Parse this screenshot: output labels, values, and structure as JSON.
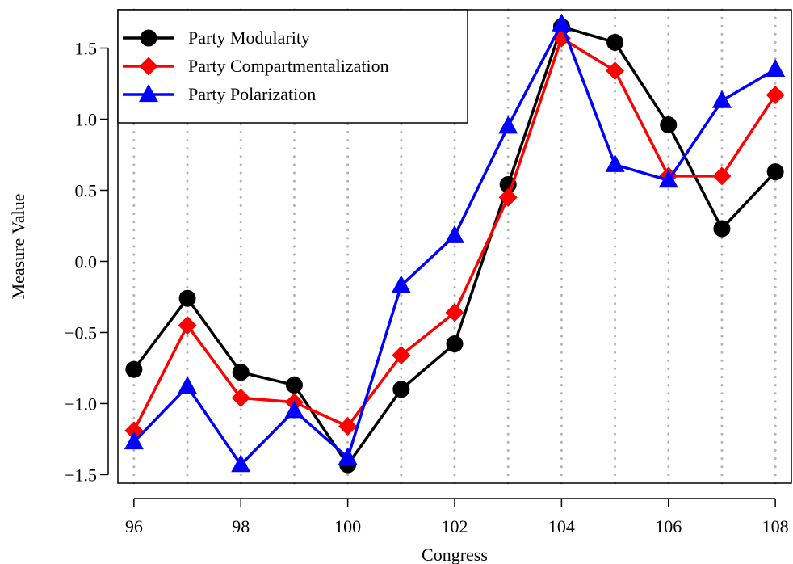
{
  "chart_data": {
    "type": "line",
    "xlabel": "Congress",
    "ylabel": "Measure Value",
    "x": [
      96,
      97,
      98,
      99,
      100,
      101,
      102,
      103,
      104,
      105,
      106,
      107,
      108
    ],
    "xticks": [
      "96",
      "98",
      "100",
      "102",
      "104",
      "106",
      "108"
    ],
    "xlim": [
      95.7,
      108.3
    ],
    "ylim": [
      -1.56,
      1.77
    ],
    "yticks": [
      "1.5",
      "1.0",
      "0.5",
      "0.0",
      "−0.5",
      "−1.0",
      "−1.5"
    ],
    "ytick_values": [
      1.5,
      1.0,
      0.5,
      0.0,
      -0.5,
      -1.0,
      -1.5
    ],
    "grid": "vertical dotted at each congress",
    "legend_position": "top-left",
    "series": [
      {
        "name": "Party Modularity",
        "color": "#000000",
        "marker": "circle",
        "values": [
          -0.76,
          -0.26,
          -0.78,
          -0.87,
          -1.43,
          -0.9,
          -0.58,
          0.54,
          1.65,
          1.54,
          0.96,
          0.23,
          0.63
        ]
      },
      {
        "name": "Party Compartmentalization",
        "color": "#ff0000",
        "marker": "diamond",
        "values": [
          -1.19,
          -0.45,
          -0.96,
          -0.99,
          -1.16,
          -0.66,
          -0.36,
          0.45,
          1.57,
          1.34,
          0.6,
          0.6,
          1.17
        ]
      },
      {
        "name": "Party Polarization",
        "color": "#0000ff",
        "marker": "triangle",
        "values": [
          -1.27,
          -0.88,
          -1.43,
          -1.05,
          -1.38,
          -0.17,
          0.18,
          0.95,
          1.67,
          0.68,
          0.57,
          1.13,
          1.35
        ]
      }
    ]
  }
}
